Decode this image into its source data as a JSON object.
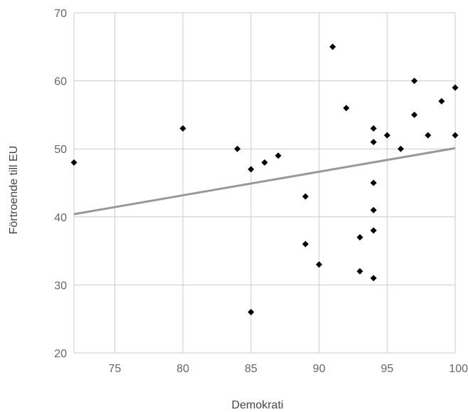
{
  "chart_data": {
    "type": "scatter",
    "title": "",
    "xlabel": "Demokrati",
    "ylabel": "Förtroende till EU",
    "xlim": [
      72,
      100
    ],
    "ylim": [
      20,
      70
    ],
    "x_ticks": [
      75,
      80,
      85,
      90,
      95,
      100
    ],
    "y_ticks": [
      20,
      30,
      40,
      50,
      60,
      70
    ],
    "x_tick_labels": [
      "75",
      "80",
      "85",
      "90",
      "95",
      "100"
    ],
    "y_tick_labels": [
      "20",
      "30",
      "40",
      "50",
      "60",
      "70"
    ],
    "grid": true,
    "legend": "none",
    "marker": "diamond",
    "colors": {
      "points": "#000000",
      "trendline": "#999999",
      "grid": "#cccccc",
      "tick_text": "#666666",
      "axis_title": "#444444"
    },
    "points": [
      {
        "x": 72,
        "y": 48
      },
      {
        "x": 80,
        "y": 53
      },
      {
        "x": 84,
        "y": 50
      },
      {
        "x": 85,
        "y": 47
      },
      {
        "x": 85,
        "y": 26
      },
      {
        "x": 86,
        "y": 48
      },
      {
        "x": 87,
        "y": 49
      },
      {
        "x": 89,
        "y": 43
      },
      {
        "x": 89,
        "y": 36
      },
      {
        "x": 90,
        "y": 33
      },
      {
        "x": 91,
        "y": 65
      },
      {
        "x": 92,
        "y": 56
      },
      {
        "x": 93,
        "y": 37
      },
      {
        "x": 93,
        "y": 32
      },
      {
        "x": 94,
        "y": 53
      },
      {
        "x": 94,
        "y": 51
      },
      {
        "x": 94,
        "y": 45
      },
      {
        "x": 94,
        "y": 41
      },
      {
        "x": 94,
        "y": 38
      },
      {
        "x": 94,
        "y": 31
      },
      {
        "x": 95,
        "y": 52
      },
      {
        "x": 96,
        "y": 50
      },
      {
        "x": 97,
        "y": 60
      },
      {
        "x": 97,
        "y": 55
      },
      {
        "x": 98,
        "y": 52
      },
      {
        "x": 99,
        "y": 57
      },
      {
        "x": 100,
        "y": 59
      },
      {
        "x": 100,
        "y": 52
      }
    ],
    "trendline": {
      "type": "linear",
      "from": {
        "x": 72,
        "y": 40.4
      },
      "to": {
        "x": 100,
        "y": 50.1
      }
    }
  }
}
